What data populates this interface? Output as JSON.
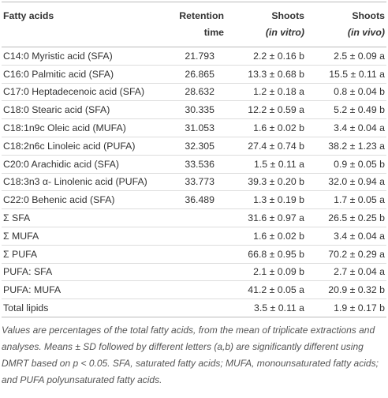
{
  "table": {
    "header": [
      [
        "Fatty acids"
      ],
      [
        "Retention",
        "time"
      ],
      [
        "Shoots",
        "(in vitro)"
      ],
      [
        "Shoots",
        "(in vivo)"
      ]
    ],
    "rows": [
      [
        "C14:0 Myristic acid (SFA)",
        "21.793",
        "2.2 ± 0.16 b",
        "2.5 ± 0.09 a"
      ],
      [
        "C16:0 Palmitic acid (SFA)",
        "26.865",
        "13.3 ± 0.68 b",
        "15.5 ± 0.11 a"
      ],
      [
        "C17:0 Heptadecenoic acid (SFA)",
        "28.632",
        "1.2 ± 0.18 a",
        "0.8 ± 0.04 b"
      ],
      [
        "C18:0 Stearic acid (SFA)",
        "30.335",
        "12.2 ± 0.59 a",
        "5.2 ± 0.49 b"
      ],
      [
        "C18:1n9c Oleic acid (MUFA)",
        "31.053",
        "1.6 ± 0.02 b",
        "3.4 ± 0.04 a"
      ],
      [
        "C18:2n6c Linoleic acid (PUFA)",
        "32.305",
        "27.4 ± 0.74 b",
        "38.2 ± 1.23 a"
      ],
      [
        "C20:0 Arachidic acid (SFA)",
        "33.536",
        "1.5 ± 0.11 a",
        "0.9 ± 0.05 b"
      ],
      [
        "C18:3n3 α- Linolenic acid (PUFA)",
        "33.773",
        "39.3 ± 0.20 b",
        "32.0 ± 0.94 a"
      ],
      [
        "C22:0 Behenic acid (SFA)",
        "36.489",
        "1.3 ± 0.19 b",
        "1.7 ± 0.05 a"
      ],
      [
        "Σ SFA",
        "",
        "31.6 ± 0.97 a",
        "26.5 ± 0.25 b"
      ],
      [
        "Σ MUFA",
        "",
        "1.6 ± 0.02 b",
        "3.4 ± 0.04 a"
      ],
      [
        "Σ PUFA",
        "",
        "66.8 ± 0.95 b",
        "70.2 ± 0.29 a"
      ],
      [
        "PUFA: SFA",
        "",
        "2.1 ± 0.09 b",
        "2.7 ± 0.04 a"
      ],
      [
        "PUFA: MUFA",
        "",
        "41.2 ± 0.05 a",
        "20.9 ± 0.32 b"
      ],
      [
        "Total lipids",
        "",
        "3.5 ± 0.11 a",
        "1.9 ± 0.17 b"
      ]
    ],
    "footnote": "Values are percentages of the total fatty acids, from the mean of triplicate extractions and analyses. Means ± SD followed by different letters (a,b) are significantly different using DMRT based on p < 0.05. SFA, saturated fatty acids; MUFA, monounsaturated fatty acids; and PUFA polyunsaturated fatty acids."
  }
}
